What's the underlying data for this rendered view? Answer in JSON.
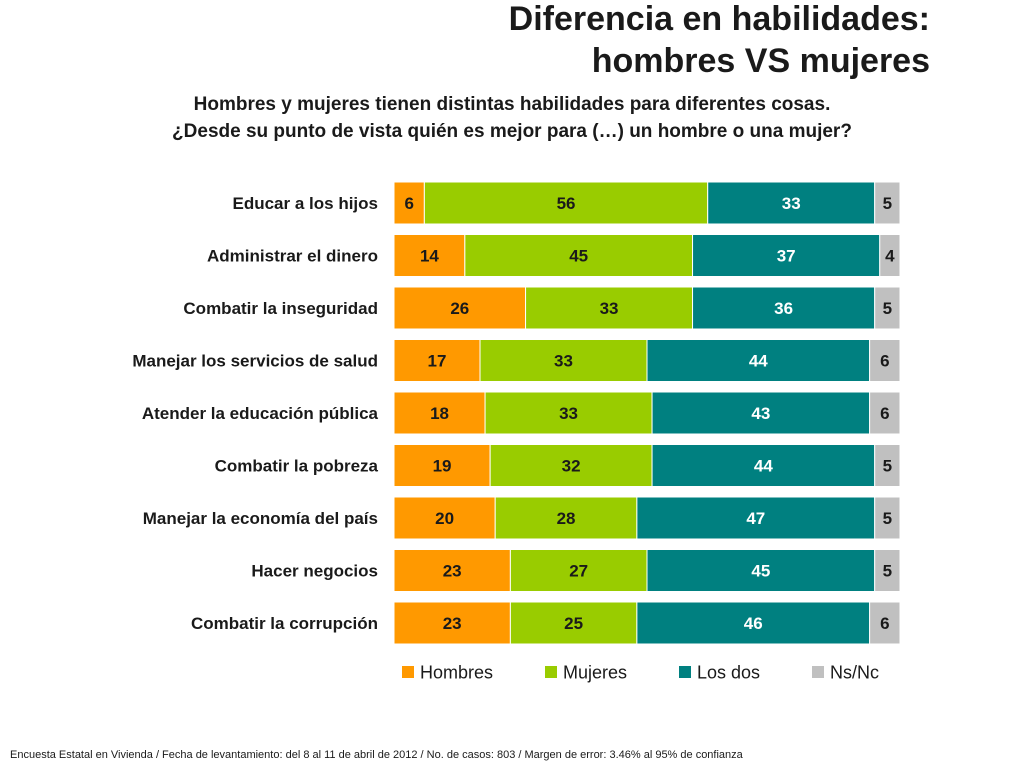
{
  "title": {
    "line1": "Diferencia en habilidades:",
    "line2": "hombres VS mujeres"
  },
  "subtitle": {
    "line1": "Hombres y mujeres tienen distintas habilidades para diferentes cosas.",
    "line2": "¿Desde su punto de vista quién es mejor para (…) un hombre o una mujer?"
  },
  "footnote": "Encuesta Estatal en Vivienda / Fecha de levantamiento: del  8 al 11 de abril de 2012 / No. de casos: 803 / Margen de error: 3.46% al 95% de confianza",
  "chart_data": {
    "type": "bar",
    "orientation": "horizontal",
    "stacked": true,
    "categories": [
      "Educar a los hijos",
      "Administrar el dinero",
      "Combatir la inseguridad",
      "Manejar los servicios de salud",
      "Atender la educación pública",
      "Combatir la pobreza",
      "Manejar la economía del país",
      "Hacer negocios",
      "Combatir la corrupción"
    ],
    "series": [
      {
        "name": "Hombres",
        "color": "#FF9900",
        "label_color": "#1a1a1a",
        "values": [
          6,
          14,
          26,
          17,
          18,
          19,
          20,
          23,
          23
        ]
      },
      {
        "name": "Mujeres",
        "color": "#99CC00",
        "label_color": "#1a1a1a",
        "values": [
          56,
          45,
          33,
          33,
          33,
          32,
          28,
          27,
          25
        ]
      },
      {
        "name": "Los dos",
        "color": "#008080",
        "label_color": "#ffffff",
        "values": [
          33,
          37,
          36,
          44,
          43,
          44,
          47,
          45,
          46
        ]
      },
      {
        "name": "Ns/Nc",
        "color": "#C0C0C0",
        "label_color": "#1a1a1a",
        "values": [
          5,
          4,
          5,
          6,
          6,
          5,
          5,
          5,
          6
        ]
      }
    ],
    "xlim": [
      0,
      100
    ],
    "grid": false,
    "legend_position": "bottom"
  }
}
